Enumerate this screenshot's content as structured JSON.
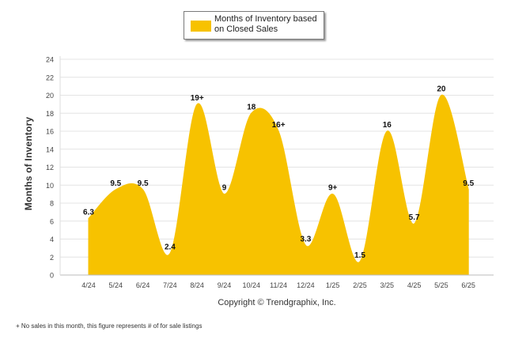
{
  "chart_data": {
    "type": "area",
    "title": "",
    "xlabel": "",
    "ylabel": "Months of Inventory",
    "categories": [
      "4/24",
      "5/24",
      "6/24",
      "7/24",
      "8/24",
      "9/24",
      "10/24",
      "11/24",
      "12/24",
      "1/25",
      "2/25",
      "3/25",
      "4/25",
      "5/25",
      "6/25"
    ],
    "series": [
      {
        "name": "Months of Inventory based on Closed Sales",
        "values": [
          6.3,
          9.5,
          9.5,
          2.4,
          19,
          9,
          18,
          16,
          3.3,
          9,
          1.5,
          16,
          5.7,
          20,
          9.5
        ],
        "labels": [
          "6.3",
          "9.5",
          "9.5",
          "2.4",
          "19+",
          "9",
          "18",
          "16+",
          "3.3",
          "9+",
          "1.5",
          "16",
          "5.7",
          "20",
          "9.5"
        ],
        "color": "#f7c200"
      }
    ],
    "ylim": [
      0,
      24
    ],
    "yticks": [
      "0",
      "2",
      "4",
      "6",
      "8",
      "10",
      "12",
      "14",
      "16",
      "18",
      "20",
      "22",
      "24"
    ],
    "grid": true,
    "legend_position": "top"
  },
  "legend": {
    "label": "Months of Inventory based on Closed Sales"
  },
  "copyright": "Copyright © Trendgraphix, Inc.",
  "footnote": "+  No sales in this month, this figure represents # of for sale listings"
}
